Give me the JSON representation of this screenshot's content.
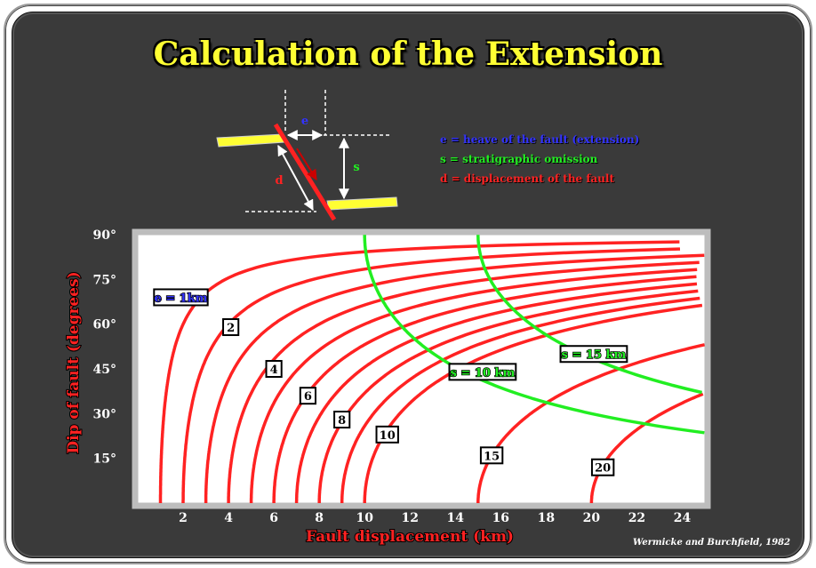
{
  "title": "Calculation of the Extension",
  "diagram": {
    "e_label": "e",
    "s_label": "s",
    "d_label": "d"
  },
  "legend": {
    "e": "e  = heave of the fault (extension)",
    "s": "s = stratigraphic omission",
    "d": "d = displacement of the fault"
  },
  "credit": "Wermicke and Burchfield, 1982",
  "colors": {
    "background": "#3a3a3a",
    "title": "#ffff33",
    "heave": "#3333ff",
    "omission": "#22ee22",
    "displacement": "#ff2222",
    "plot_bg": "#ffffff"
  },
  "chart_data": {
    "type": "line",
    "xlabel": "Fault displacement (km)",
    "ylabel": "Dip of fault (degrees)",
    "xlim": [
      0,
      25
    ],
    "ylim": [
      0,
      90
    ],
    "xticks": [
      2,
      4,
      6,
      8,
      10,
      12,
      14,
      16,
      18,
      20,
      22,
      24
    ],
    "xtick_labels": [
      "2",
      "4",
      "6",
      "8",
      "10",
      "12",
      "14",
      "16",
      "18",
      "20",
      "22",
      "24"
    ],
    "yticks": [
      15,
      30,
      45,
      60,
      75,
      90
    ],
    "ytick_labels": [
      "15°",
      "30°",
      "45°",
      "60°",
      "75°",
      "90°"
    ],
    "grid": false,
    "extension_series": [
      {
        "e": 1,
        "label": "e = 1km",
        "label_at": [
          1.9,
          69
        ]
      },
      {
        "e": 2,
        "label": "2",
        "label_at": [
          4.1,
          59
        ]
      },
      {
        "e": 3,
        "label": "",
        "label_at": null
      },
      {
        "e": 4,
        "label": "4",
        "label_at": [
          6.0,
          45
        ]
      },
      {
        "e": 5,
        "label": "",
        "label_at": null
      },
      {
        "e": 6,
        "label": "6",
        "label_at": [
          7.5,
          36
        ]
      },
      {
        "e": 7,
        "label": "",
        "label_at": null
      },
      {
        "e": 8,
        "label": "8",
        "label_at": [
          9.0,
          28
        ]
      },
      {
        "e": 9,
        "label": "",
        "label_at": null
      },
      {
        "e": 10,
        "label": "10",
        "label_at": [
          11.0,
          23
        ]
      },
      {
        "e": 15,
        "label": "15",
        "label_at": [
          15.6,
          16
        ]
      },
      {
        "e": 20,
        "label": "20",
        "label_at": [
          20.5,
          12
        ]
      }
    ],
    "omission_series": [
      {
        "s": 10,
        "label": "s = 10 km",
        "label_at": [
          15.2,
          44
        ]
      },
      {
        "s": 15,
        "label": "s = 15 km",
        "label_at": [
          20.1,
          50
        ]
      }
    ]
  }
}
